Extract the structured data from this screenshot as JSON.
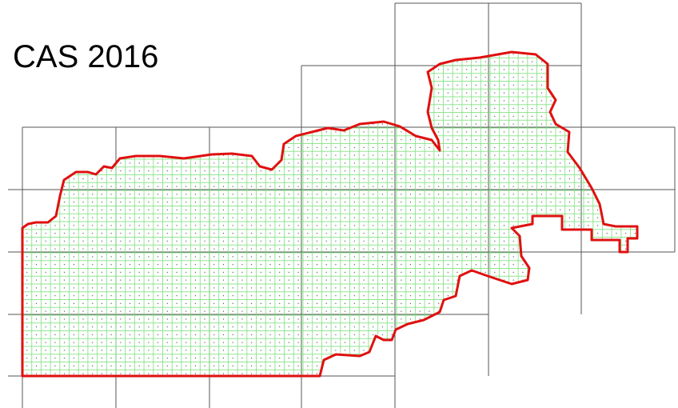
{
  "title": "CAS 2016"
}
